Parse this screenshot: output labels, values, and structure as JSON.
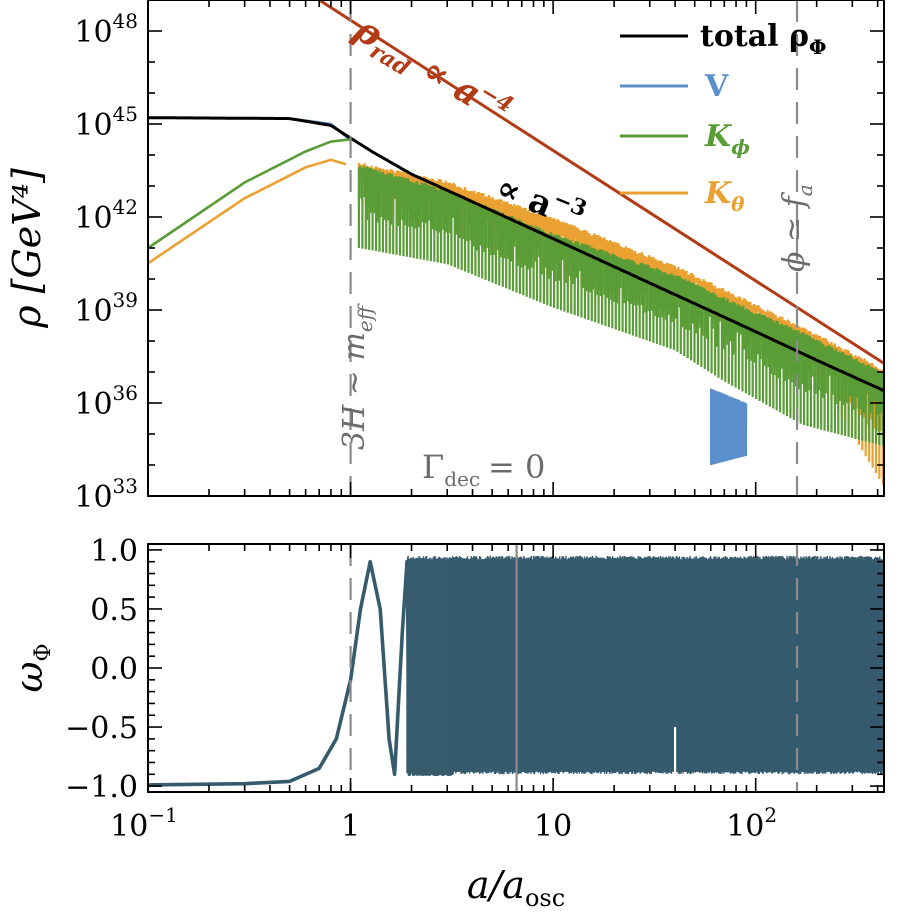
{
  "chart_data": [
    {
      "type": "line",
      "panel": "top",
      "xscale": "log",
      "yscale": "log",
      "xlim": [
        0.1,
        430
      ],
      "ylim": [
        1e+33,
        1e+49
      ],
      "ylabel": "ρ [GeV⁴]",
      "y_tick_labels": [
        {
          "value": 1e+33,
          "base": "10",
          "exp": "33"
        },
        {
          "value": 1e+36,
          "base": "10",
          "exp": "36"
        },
        {
          "value": 1e+39,
          "base": "10",
          "exp": "39"
        },
        {
          "value": 1e+42,
          "base": "10",
          "exp": "42"
        },
        {
          "value": 1e+45,
          "base": "10",
          "exp": "45"
        },
        {
          "value": 1e+48,
          "base": "10",
          "exp": "48"
        }
      ],
      "legend": {
        "position": "top-right",
        "entries": [
          {
            "label": "total ρ",
            "sub": "Φ",
            "color": "#000000"
          },
          {
            "label": "V",
            "sub": "",
            "color": "#5b8fcb"
          },
          {
            "label": "K",
            "sub": "ϕ",
            "color": "#5a9c36"
          },
          {
            "label": "K",
            "sub": "θ",
            "color": "#eaa131"
          }
        ]
      },
      "series": [
        {
          "name": "total",
          "color": "#000000",
          "points": [
            [
              0.1,
              1.6e+45
            ],
            [
              0.5,
              1.5e+45
            ],
            [
              0.8,
              9e+44
            ],
            [
              1.0,
              3.5e+44
            ],
            [
              1.3,
              1.2e+44
            ],
            [
              2,
              2.4e+43
            ],
            [
              4,
              3.1e+42
            ],
            [
              10,
              2e+41
            ],
            [
              30,
              7.4e+39
            ],
            [
              60,
              9.3e+38
            ],
            [
              100,
              2e+38
            ],
            [
              200,
              2.4e+37
            ],
            [
              430,
              2.5e+36
            ]
          ]
        },
        {
          "name": "V",
          "color": "#5b8fcb",
          "points": [
            [
              0.1,
              1.6e+45
            ],
            [
              0.5,
              1.5e+45
            ],
            [
              0.8,
              1e+45
            ],
            [
              1.0,
              3e+44
            ]
          ]
        },
        {
          "name": "K_phi",
          "color": "#5a9c36",
          "points": [
            [
              0.1,
              1e+41
            ],
            [
              0.3,
              1.3e+43
            ],
            [
              0.6,
              1.3e+44
            ],
            [
              0.8,
              2.7e+44
            ],
            [
              1.0,
              3.2e+44
            ]
          ]
        },
        {
          "name": "K_theta",
          "color": "#eaa131",
          "points": [
            [
              0.1,
              3.2e+40
            ],
            [
              0.3,
              4e+42
            ],
            [
              0.6,
              4e+43
            ],
            [
              0.8,
              7e+43
            ],
            [
              0.95,
              5e+43
            ]
          ]
        }
      ],
      "oscillation_envelopes": [
        {
          "name": "K_theta band",
          "color": "#eaa131",
          "upper": [
            [
              1.1,
              6e+43
            ],
            [
              3,
              1.5e+43
            ],
            [
              10,
              1e+42
            ],
            [
              40,
              2.8e+40
            ],
            [
              100,
              1.6e+39
            ],
            [
              170,
              3e+38
            ],
            [
              430,
              1.3e+37
            ]
          ],
          "lower": [
            [
              1.1,
              3e+42
            ],
            [
              3,
              3e+41
            ],
            [
              10,
              1.2e+40
            ],
            [
              40,
              1e+39
            ],
            [
              100,
              3e+38
            ],
            [
              170,
              5e+37
            ],
            [
              430,
              2e+33
            ]
          ]
        },
        {
          "name": "K_phi band",
          "color": "#5a9c36",
          "upper": [
            [
              1.1,
              5e+43
            ],
            [
              3,
              8e+42
            ],
            [
              10,
              3e+41
            ],
            [
              40,
              1.5e+40
            ],
            [
              100,
              9e+38
            ],
            [
              170,
              2e+38
            ],
            [
              430,
              1e+37
            ]
          ],
          "lower": [
            [
              1.1,
              1e+41
            ],
            [
              3,
              3e+40
            ],
            [
              10,
              1.2e+39
            ],
            [
              40,
              5e+37
            ],
            [
              70,
              5e+36
            ],
            [
              170,
              2e+35
            ],
            [
              430,
              4e+34
            ]
          ]
        },
        {
          "name": "V spikes",
          "color": "#5b8fcb",
          "upper": [
            [
              60,
              3e+36
            ],
            [
              90,
              1e+36
            ]
          ],
          "lower": [
            [
              60,
              1e+34
            ],
            [
              90,
              2e+34
            ]
          ]
        }
      ],
      "reference_lines": [
        {
          "name": "rho_rad",
          "color": "#b23a14",
          "points": [
            [
              0.7,
              1e+49
            ],
            [
              430,
              1.9e+37
            ]
          ]
        }
      ],
      "vertical_markers": [
        {
          "x": 1.0,
          "label": "3H ∼ m",
          "sub": "eff"
        },
        {
          "x": 160,
          "label": "ϕ ≃ f",
          "sub": "a"
        }
      ],
      "annotations": [
        {
          "name": "rad-scaling",
          "text": "ρ",
          "sub": "rad",
          "text2": "∝ a",
          "sup": "−4",
          "color": "#b23a14"
        },
        {
          "name": "matter-scaling",
          "text": "∝ a",
          "sup": "−3",
          "color": "#000000"
        },
        {
          "name": "gamma-label",
          "text": "Γ",
          "sub": "dec",
          "text2": "= 0",
          "color": "#6b6b6b"
        }
      ]
    },
    {
      "type": "line",
      "panel": "bottom",
      "xscale": "log",
      "xlim": [
        0.1,
        430
      ],
      "ylim": [
        -1.05,
        1.05
      ],
      "xlabel": "a/a",
      "xlabel_sub": "osc",
      "ylabel": "ω",
      "ylabel_sub": "Φ",
      "y_ticks": [
        -1.0,
        -0.5,
        0.0,
        0.5,
        1.0
      ],
      "y_tick_labels": [
        "−1.0",
        "−0.5",
        "0.0",
        "0.5",
        "1.0"
      ],
      "x_tick_labels": [
        {
          "value": 0.1,
          "base": "10",
          "exp": "−1"
        },
        {
          "value": 1,
          "base": "1",
          "exp": ""
        },
        {
          "value": 10,
          "base": "10",
          "exp": ""
        },
        {
          "value": 100,
          "base": "10",
          "exp": "2"
        }
      ],
      "series": [
        {
          "name": "omega_phi",
          "color": "#365b6d",
          "points": [
            [
              0.1,
              -0.99
            ],
            [
              0.3,
              -0.98
            ],
            [
              0.5,
              -0.96
            ],
            [
              0.7,
              -0.85
            ],
            [
              0.85,
              -0.6
            ],
            [
              1.0,
              -0.1
            ],
            [
              1.12,
              0.5
            ],
            [
              1.25,
              0.9
            ],
            [
              1.4,
              0.5
            ],
            [
              1.55,
              -0.6
            ],
            [
              1.65,
              -0.9
            ],
            [
              1.8,
              0.3
            ],
            [
              1.9,
              0.9
            ]
          ]
        }
      ],
      "oscillation_band": {
        "color": "#365b6d",
        "x_start": 1.9,
        "x_end": 430,
        "upper": 0.95,
        "lower": -0.9
      },
      "vertical_markers": [
        1.0,
        6.6,
        160
      ]
    }
  ]
}
